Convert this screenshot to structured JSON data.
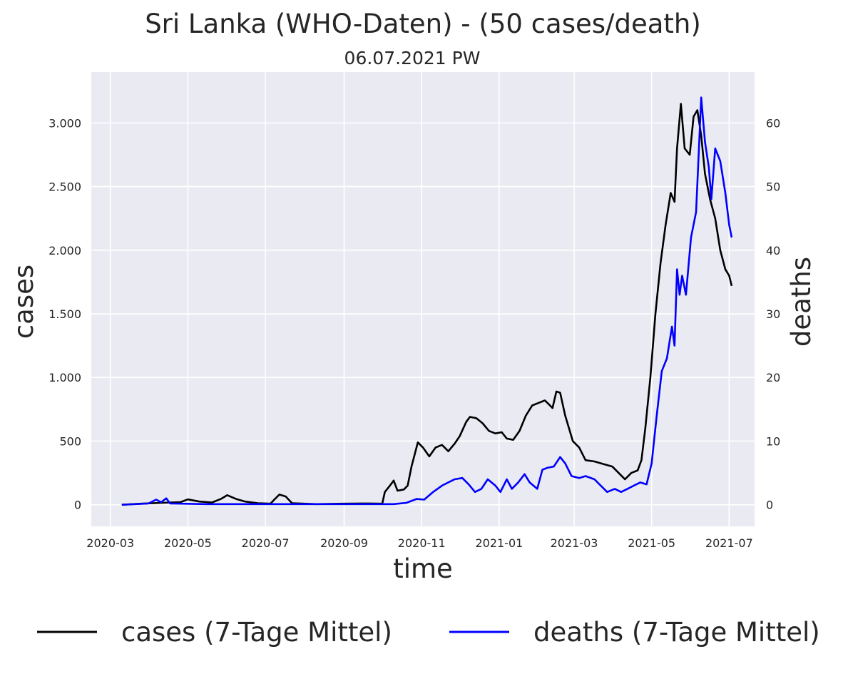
{
  "chart_data": {
    "type": "line",
    "title": "Sri Lanka (WHO-Daten) - (50 cases/death)",
    "subtitle": "06.07.2021 PW",
    "xlabel": "time",
    "ylabel_left": "cases",
    "ylabel_right": "deaths",
    "x_range": [
      "2020-02-15",
      "2021-07-21"
    ],
    "ylim_left": [
      -170,
      3400
    ],
    "ylim_right": [
      -3.4,
      68
    ],
    "grid": true,
    "legend_position": "bottom-center",
    "background_color": "#EAEAF2",
    "x_ticks": [
      "2020-03-01",
      "2020-05-01",
      "2020-07-01",
      "2020-09-01",
      "2020-11-01",
      "2021-01-01",
      "2021-03-01",
      "2021-05-01",
      "2021-07-01"
    ],
    "x_tick_labels": [
      "2020-03",
      "2020-05",
      "2020-07",
      "2020-09",
      "2020-11",
      "2021-01",
      "2021-03",
      "2021-05",
      "2021-07"
    ],
    "y_ticks_left": [
      0,
      500,
      1000,
      1500,
      2000,
      2500,
      3000
    ],
    "y_tick_labels_left": [
      "0",
      "500",
      "1.000",
      "1.500",
      "2.000",
      "2.500",
      "3.000"
    ],
    "y_ticks_right": [
      0,
      10,
      20,
      30,
      40,
      50,
      60
    ],
    "y_tick_labels_right": [
      "0",
      "10",
      "20",
      "30",
      "40",
      "50",
      "60"
    ],
    "series": [
      {
        "name": "cases (7-Tage Mittel)",
        "axis": "left",
        "color": "#000000",
        "points": [
          [
            "2020-03-10",
            0
          ],
          [
            "2020-03-25",
            8
          ],
          [
            "2020-04-10",
            15
          ],
          [
            "2020-04-25",
            20
          ],
          [
            "2020-05-01",
            42
          ],
          [
            "2020-05-10",
            25
          ],
          [
            "2020-05-20",
            18
          ],
          [
            "2020-05-27",
            45
          ],
          [
            "2020-06-01",
            75
          ],
          [
            "2020-06-08",
            45
          ],
          [
            "2020-06-15",
            25
          ],
          [
            "2020-06-25",
            12
          ],
          [
            "2020-07-05",
            8
          ],
          [
            "2020-07-08",
            40
          ],
          [
            "2020-07-12",
            80
          ],
          [
            "2020-07-17",
            65
          ],
          [
            "2020-07-22",
            12
          ],
          [
            "2020-08-10",
            5
          ],
          [
            "2020-09-01",
            8
          ],
          [
            "2020-09-20",
            10
          ],
          [
            "2020-10-01",
            8
          ],
          [
            "2020-10-03",
            100
          ],
          [
            "2020-10-07",
            150
          ],
          [
            "2020-10-10",
            190
          ],
          [
            "2020-10-13",
            110
          ],
          [
            "2020-10-18",
            120
          ],
          [
            "2020-10-21",
            150
          ],
          [
            "2020-10-24",
            300
          ],
          [
            "2020-10-29",
            490
          ],
          [
            "2020-11-02",
            450
          ],
          [
            "2020-11-07",
            380
          ],
          [
            "2020-11-12",
            450
          ],
          [
            "2020-11-17",
            470
          ],
          [
            "2020-11-22",
            420
          ],
          [
            "2020-11-27",
            480
          ],
          [
            "2020-12-01",
            540
          ],
          [
            "2020-12-06",
            650
          ],
          [
            "2020-12-09",
            690
          ],
          [
            "2020-12-14",
            680
          ],
          [
            "2020-12-19",
            640
          ],
          [
            "2020-12-24",
            580
          ],
          [
            "2020-12-29",
            560
          ],
          [
            "2021-01-03",
            570
          ],
          [
            "2021-01-07",
            520
          ],
          [
            "2021-01-12",
            510
          ],
          [
            "2021-01-17",
            580
          ],
          [
            "2021-01-22",
            700
          ],
          [
            "2021-01-27",
            780
          ],
          [
            "2021-02-01",
            800
          ],
          [
            "2021-02-06",
            820
          ],
          [
            "2021-02-09",
            790
          ],
          [
            "2021-02-12",
            760
          ],
          [
            "2021-02-15",
            890
          ],
          [
            "2021-02-18",
            880
          ],
          [
            "2021-02-22",
            700
          ],
          [
            "2021-02-28",
            500
          ],
          [
            "2021-03-05",
            450
          ],
          [
            "2021-03-10",
            350
          ],
          [
            "2021-03-17",
            340
          ],
          [
            "2021-03-24",
            320
          ],
          [
            "2021-03-31",
            300
          ],
          [
            "2021-04-05",
            250
          ],
          [
            "2021-04-10",
            200
          ],
          [
            "2021-04-15",
            250
          ],
          [
            "2021-04-20",
            270
          ],
          [
            "2021-04-23",
            350
          ],
          [
            "2021-04-26",
            600
          ],
          [
            "2021-04-30",
            1000
          ],
          [
            "2021-05-04",
            1500
          ],
          [
            "2021-05-08",
            1900
          ],
          [
            "2021-05-12",
            2200
          ],
          [
            "2021-05-16",
            2450
          ],
          [
            "2021-05-19",
            2380
          ],
          [
            "2021-05-21",
            2800
          ],
          [
            "2021-05-24",
            3150
          ],
          [
            "2021-05-27",
            2800
          ],
          [
            "2021-05-31",
            2750
          ],
          [
            "2021-06-03",
            3050
          ],
          [
            "2021-06-06",
            3100
          ],
          [
            "2021-06-09",
            2900
          ],
          [
            "2021-06-12",
            2600
          ],
          [
            "2021-06-16",
            2400
          ],
          [
            "2021-06-20",
            2250
          ],
          [
            "2021-06-24",
            2000
          ],
          [
            "2021-06-28",
            1850
          ],
          [
            "2021-07-01",
            1800
          ],
          [
            "2021-07-03",
            1720
          ]
        ]
      },
      {
        "name": "deaths (7-Tage Mittel)",
        "axis": "right",
        "color": "#0000FF",
        "points": [
          [
            "2020-03-10",
            0
          ],
          [
            "2020-03-31",
            0.2
          ],
          [
            "2020-04-06",
            0.8
          ],
          [
            "2020-04-10",
            0.4
          ],
          [
            "2020-04-14",
            1.0
          ],
          [
            "2020-04-17",
            0.2
          ],
          [
            "2020-05-15",
            0.1
          ],
          [
            "2020-06-15",
            0.1
          ],
          [
            "2020-08-01",
            0.1
          ],
          [
            "2020-09-15",
            0.1
          ],
          [
            "2020-10-10",
            0.1
          ],
          [
            "2020-10-20",
            0.3
          ],
          [
            "2020-10-28",
            0.9
          ],
          [
            "2020-11-03",
            0.8
          ],
          [
            "2020-11-10",
            2.0
          ],
          [
            "2020-11-17",
            3.0
          ],
          [
            "2020-11-22",
            3.5
          ],
          [
            "2020-11-27",
            4.0
          ],
          [
            "2020-12-03",
            4.2
          ],
          [
            "2020-12-08",
            3.2
          ],
          [
            "2020-12-13",
            2.0
          ],
          [
            "2020-12-18",
            2.5
          ],
          [
            "2020-12-23",
            4.0
          ],
          [
            "2020-12-29",
            3.0
          ],
          [
            "2021-01-02",
            2.0
          ],
          [
            "2021-01-07",
            4.0
          ],
          [
            "2021-01-11",
            2.5
          ],
          [
            "2021-01-16",
            3.5
          ],
          [
            "2021-01-21",
            4.8
          ],
          [
            "2021-01-25",
            3.5
          ],
          [
            "2021-01-31",
            2.5
          ],
          [
            "2021-02-04",
            5.5
          ],
          [
            "2021-02-08",
            5.8
          ],
          [
            "2021-02-13",
            6.0
          ],
          [
            "2021-02-18",
            7.5
          ],
          [
            "2021-02-22",
            6.5
          ],
          [
            "2021-02-27",
            4.5
          ],
          [
            "2021-03-05",
            4.2
          ],
          [
            "2021-03-10",
            4.5
          ],
          [
            "2021-03-17",
            4.0
          ],
          [
            "2021-03-22",
            3.0
          ],
          [
            "2021-03-27",
            2.0
          ],
          [
            "2021-04-02",
            2.5
          ],
          [
            "2021-04-07",
            2.0
          ],
          [
            "2021-04-12",
            2.5
          ],
          [
            "2021-04-17",
            3.0
          ],
          [
            "2021-04-22",
            3.5
          ],
          [
            "2021-04-27",
            3.2
          ],
          [
            "2021-05-01",
            6.5
          ],
          [
            "2021-05-05",
            14.0
          ],
          [
            "2021-05-09",
            21.0
          ],
          [
            "2021-05-13",
            23.0
          ],
          [
            "2021-05-17",
            28.0
          ],
          [
            "2021-05-19",
            25.0
          ],
          [
            "2021-05-21",
            37.0
          ],
          [
            "2021-05-23",
            33.0
          ],
          [
            "2021-05-25",
            36.0
          ],
          [
            "2021-05-28",
            33.0
          ],
          [
            "2021-06-01",
            42.0
          ],
          [
            "2021-06-05",
            46.0
          ],
          [
            "2021-06-09",
            64.0
          ],
          [
            "2021-06-12",
            57.0
          ],
          [
            "2021-06-15",
            53.0
          ],
          [
            "2021-06-17",
            48.0
          ],
          [
            "2021-06-20",
            56.0
          ],
          [
            "2021-06-24",
            54.0
          ],
          [
            "2021-06-28",
            49.0
          ],
          [
            "2021-07-01",
            44.0
          ],
          [
            "2021-07-03",
            42.0
          ]
        ]
      }
    ]
  }
}
